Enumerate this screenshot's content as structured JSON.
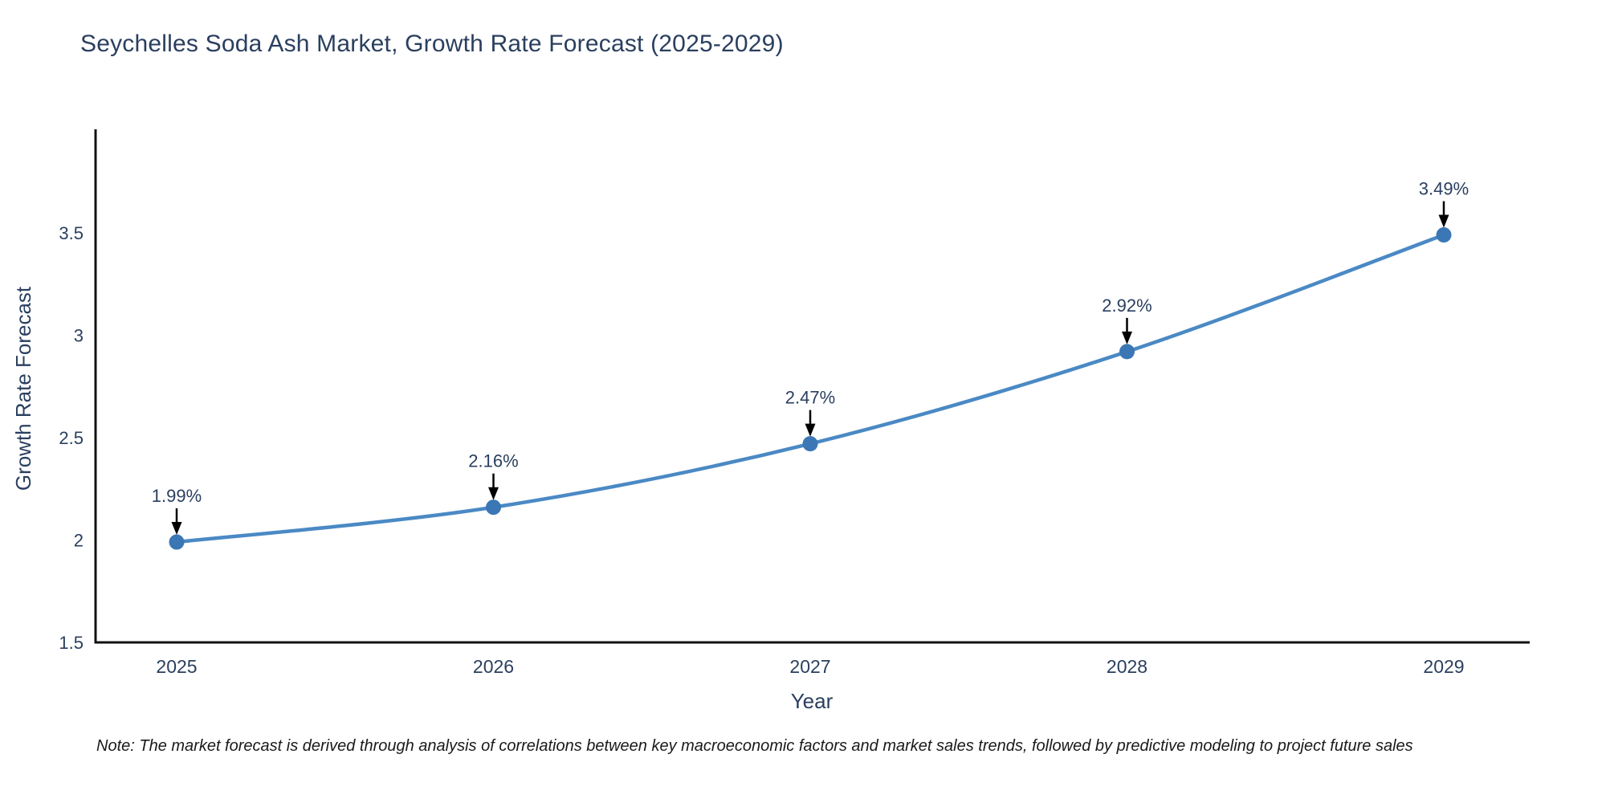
{
  "page": {
    "background": "#ffffff"
  },
  "header": {
    "title": "Seychelles Soda Ash Market, Growth Rate Forecast (2025-2029)"
  },
  "chart_data": {
    "type": "line",
    "title": "Seychelles Soda Ash Market, Growth Rate Forecast (2025-2029)",
    "x": [
      2025,
      2026,
      2027,
      2028,
      2029
    ],
    "series": [
      {
        "name": "Growth Rate Forecast",
        "values": [
          1.99,
          2.16,
          2.47,
          2.92,
          3.49
        ]
      }
    ],
    "point_labels": [
      "1.99%",
      "2.16%",
      "2.47%",
      "2.92%",
      "3.49%"
    ],
    "xlabel": "Year",
    "ylabel": "Growth Rate Forecast",
    "xtick_labels": [
      "2025",
      "2026",
      "2027",
      "2028",
      "2029"
    ],
    "yticks": [
      1.5,
      2,
      2.5,
      3,
      3.5
    ],
    "ytick_labels": [
      "1.5",
      "2",
      "2.5",
      "3",
      "3.5"
    ],
    "ylim": [
      1.5,
      4.0
    ],
    "grid": false,
    "legend_position": "none",
    "line_shape": "spline",
    "colors": {
      "line": "#4a89c4",
      "marker": "#3b77b5",
      "axis": "#111111",
      "text": "#2a3f5f",
      "annotation_arrow": "#000000"
    }
  },
  "footnote": {
    "text": "Note: The market forecast is derived through analysis of correlations between key macroeconomic factors and market sales trends, followed by predictive modeling to project future sales"
  }
}
